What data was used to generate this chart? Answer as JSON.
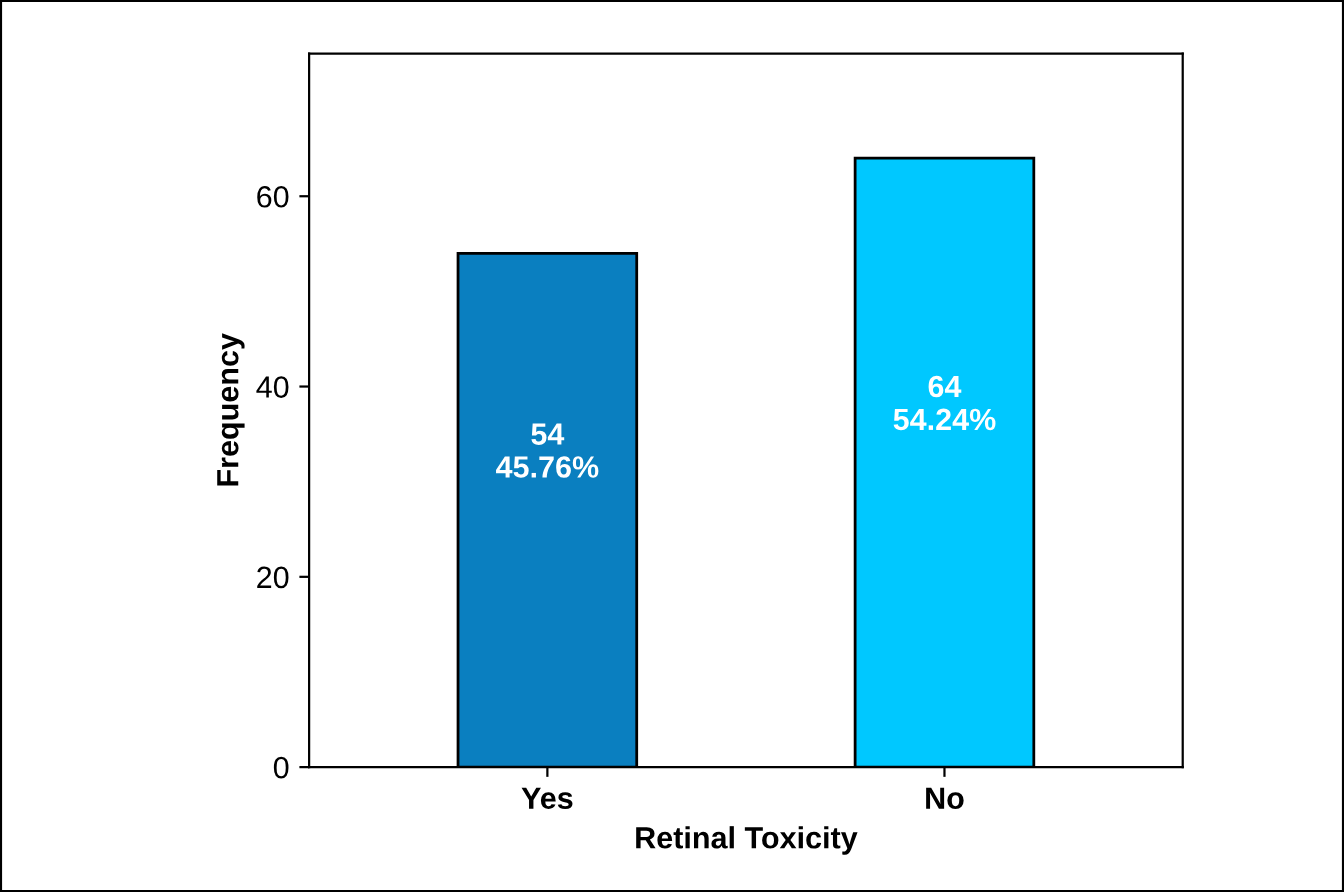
{
  "chart_data": {
    "type": "bar",
    "xlabel": "Retinal Toxicity",
    "ylabel": "Frequency",
    "categories": [
      "Yes",
      "No"
    ],
    "values": [
      54,
      64
    ],
    "colors": [
      "#0a7fc0",
      "#00c8ff"
    ],
    "value_labels": [
      "54\n45.76%",
      "64\n54.24%"
    ],
    "ylim": [
      0,
      75
    ],
    "yticks": [
      0,
      20,
      40,
      60
    ],
    "grid": false,
    "legend": false
  }
}
